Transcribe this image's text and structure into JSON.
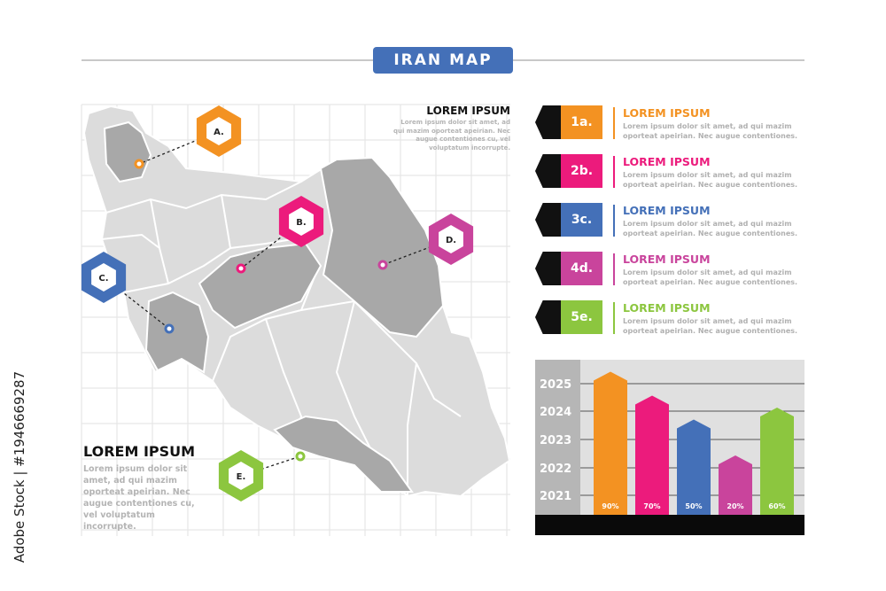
{
  "title": "IRAN MAP",
  "top_right_note": {
    "heading": "LOREM IPSUM",
    "text": "Lorem ipsum dolor sit amet, ad qui mazim oporteat apeirian. Nec augue contentiones cu, vel voluptatum incorrupte."
  },
  "bottom_left_note": {
    "heading": "LOREM IPSUM",
    "text": "Lorem ipsum dolor sit amet, ad qui mazim oporteat apeirian. Nec augue contentiones cu, vel voluptatum incorrupte."
  },
  "callouts": [
    {
      "label": "A.",
      "color": "#f39222"
    },
    {
      "label": "B.",
      "color": "#ec1b7c"
    },
    {
      "label": "C.",
      "color": "#4470b8"
    },
    {
      "label": "D.",
      "color": "#c9449c"
    },
    {
      "label": "E.",
      "color": "#8cc63f"
    }
  ],
  "legend": [
    {
      "tag": "1a.",
      "heading": "LOREM IPSUM",
      "line1": "Lorem ipsum dolor sit amet, ad qui mazim",
      "line2": "oporteat apeirian. Nec augue contentiones.",
      "color": "#f39222"
    },
    {
      "tag": "2b.",
      "heading": "LOREM IPSUM",
      "line1": "Lorem ipsum dolor sit amet, ad qui mazim",
      "line2": "oporteat apeirian. Nec augue contentiones.",
      "color": "#ec1b7c"
    },
    {
      "tag": "3c.",
      "heading": "LOREM IPSUM",
      "line1": "Lorem ipsum dolor sit amet, ad qui mazim",
      "line2": "oporteat apeirian. Nec augue contentiones.",
      "color": "#4470b8"
    },
    {
      "tag": "4d.",
      "heading": "LOREM IPSUM",
      "line1": "Lorem ipsum dolor sit amet, ad qui mazim",
      "line2": "oporteat apeirian. Nec augue contentiones.",
      "color": "#c9449c"
    },
    {
      "tag": "5e.",
      "heading": "LOREM IPSUM",
      "line1": "Lorem ipsum dolor sit amet, ad qui mazim",
      "line2": "oporteat apeirian. Nec augue contentiones.",
      "color": "#8cc63f"
    }
  ],
  "chart_data": {
    "type": "bar",
    "y_tick_labels": [
      "2025",
      "2024",
      "2023",
      "2022",
      "2021"
    ],
    "values": [
      90,
      70,
      50,
      20,
      60
    ],
    "value_labels": [
      "90%",
      "70%",
      "50%",
      "20%",
      "60%"
    ],
    "colors": [
      "#f39222",
      "#ec1b7c",
      "#4470b8",
      "#c9449c",
      "#8cc63f"
    ],
    "grid": true
  },
  "watermark": "Adobe Stock | #1946669287"
}
